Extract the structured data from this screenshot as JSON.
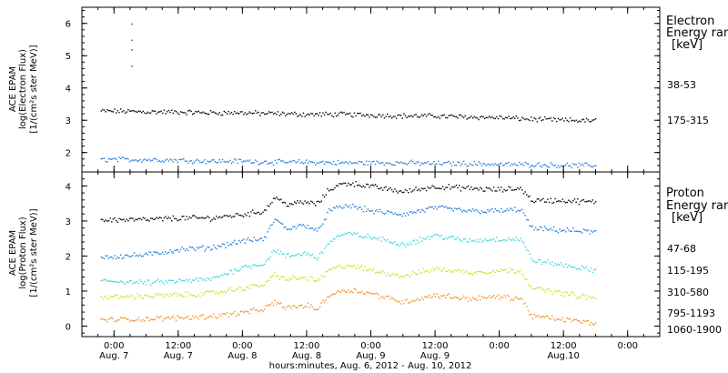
{
  "chart_data": [
    {
      "type": "scatter",
      "panel": "electron",
      "ylabel_lines": [
        "ACE EPAM",
        "log(Electron Flux)",
        "[1/(cm²s ster MeV)]"
      ],
      "ylim": [
        1.4,
        6.5
      ],
      "yticks": [
        2,
        3,
        4,
        5,
        6
      ],
      "yticklabels": [
        "2",
        "3",
        "4",
        "5",
        "6"
      ],
      "xlim_hours": [
        -6,
        102
      ],
      "legend": {
        "header_lines": [
          "Electron",
          "Energy ran",
          "[keV]"
        ],
        "placement": "right"
      },
      "series": [
        {
          "name": "38-53",
          "color": "#000000",
          "x": [
            0,
            6,
            12,
            18,
            24,
            30,
            36,
            42,
            48,
            54,
            60,
            66,
            72,
            78,
            84,
            90
          ],
          "y": [
            3.3,
            3.28,
            3.27,
            3.25,
            3.25,
            3.22,
            3.2,
            3.2,
            3.18,
            3.15,
            3.15,
            3.12,
            3.1,
            3.05,
            3.02,
            3.0
          ]
        },
        {
          "name": "175-315",
          "color": "#1a7ad6",
          "x": [
            0,
            6,
            12,
            18,
            24,
            30,
            36,
            42,
            48,
            54,
            60,
            66,
            72,
            78,
            84,
            90
          ],
          "y": [
            1.8,
            1.8,
            1.78,
            1.75,
            1.75,
            1.72,
            1.72,
            1.7,
            1.7,
            1.7,
            1.68,
            1.68,
            1.65,
            1.65,
            1.62,
            1.62
          ]
        }
      ],
      "annotations": [
        {
          "type": "spike",
          "x": 3.2,
          "y": [
            4.7,
            5.2,
            5.5,
            6.0
          ],
          "color": "#1a7ad6"
        }
      ]
    },
    {
      "type": "scatter",
      "panel": "proton",
      "ylabel_lines": [
        "ACE EPAM",
        "log(Proton Flux)",
        "[1/(cm²s ster MeV)]"
      ],
      "ylim": [
        -0.3,
        4.4
      ],
      "yticks": [
        0,
        1,
        2,
        3,
        4
      ],
      "yticklabels": [
        "0",
        "1",
        "2",
        "3",
        "4"
      ],
      "xlim_hours": [
        -6,
        102
      ],
      "xticks_hours": [
        0,
        12,
        24,
        36,
        48,
        60,
        72,
        84,
        96
      ],
      "xtick_time": [
        "0:00",
        "12:00",
        "0:00",
        "12:00",
        "0:00",
        "12:00",
        "0:00",
        "12:00",
        "0:00"
      ],
      "xtick_date": [
        "Aug. 7",
        "Aug. 7",
        "Aug. 8",
        "Aug. 8",
        "Aug. 9",
        "Aug. 9",
        "",
        "Aug.10",
        ""
      ],
      "xlabel": "hours:minutes, Aug.  6, 2012 - Aug. 10, 2012",
      "legend": {
        "header_lines": [
          "Proton",
          "Energy ran",
          "[keV]"
        ],
        "placement": "right"
      },
      "series": [
        {
          "name": "47-68",
          "color": "#000000",
          "x": [
            0,
            6,
            12,
            18,
            24,
            28,
            30,
            32,
            36,
            38,
            40,
            42,
            44,
            48,
            54,
            60,
            66,
            72,
            76,
            78,
            84,
            90
          ],
          "y": [
            3.05,
            3.05,
            3.1,
            3.1,
            3.2,
            3.3,
            3.7,
            3.5,
            3.55,
            3.5,
            3.9,
            4.05,
            4.1,
            4.0,
            3.85,
            4.0,
            3.95,
            3.9,
            3.95,
            3.6,
            3.6,
            3.55
          ]
        },
        {
          "name": "115-195",
          "color": "#1a7ad6",
          "x": [
            0,
            6,
            12,
            18,
            24,
            28,
            30,
            32,
            36,
            38,
            40,
            42,
            44,
            48,
            54,
            60,
            66,
            72,
            76,
            78,
            84,
            90
          ],
          "y": [
            2.0,
            2.05,
            2.2,
            2.25,
            2.45,
            2.5,
            3.1,
            2.8,
            2.9,
            2.7,
            3.3,
            3.4,
            3.45,
            3.3,
            3.2,
            3.4,
            3.3,
            3.3,
            3.35,
            2.8,
            2.75,
            2.7
          ]
        },
        {
          "name": "310-580",
          "color": "#33d6d6",
          "x": [
            0,
            6,
            12,
            18,
            24,
            28,
            30,
            32,
            36,
            38,
            40,
            42,
            44,
            48,
            54,
            60,
            66,
            72,
            76,
            78,
            84,
            90
          ],
          "y": [
            1.3,
            1.25,
            1.3,
            1.35,
            1.7,
            1.8,
            2.2,
            2.0,
            2.1,
            1.95,
            2.4,
            2.6,
            2.65,
            2.55,
            2.35,
            2.6,
            2.45,
            2.5,
            2.5,
            1.9,
            1.75,
            1.6
          ]
        },
        {
          "name": "795-1193",
          "color": "#c8e020",
          "x": [
            0,
            6,
            12,
            18,
            24,
            28,
            30,
            32,
            36,
            38,
            40,
            42,
            44,
            48,
            54,
            60,
            66,
            72,
            76,
            78,
            84,
            90
          ],
          "y": [
            0.85,
            0.88,
            0.9,
            0.95,
            1.1,
            1.2,
            1.5,
            1.35,
            1.4,
            1.3,
            1.6,
            1.7,
            1.75,
            1.6,
            1.45,
            1.65,
            1.55,
            1.6,
            1.6,
            1.1,
            0.95,
            0.8
          ]
        },
        {
          "name": "1060-1900",
          "color": "#ef8c1e",
          "x": [
            0,
            6,
            12,
            18,
            24,
            28,
            30,
            32,
            36,
            38,
            40,
            42,
            44,
            48,
            54,
            60,
            66,
            72,
            76,
            78,
            84,
            90
          ],
          "y": [
            0.2,
            0.22,
            0.25,
            0.3,
            0.4,
            0.5,
            0.7,
            0.55,
            0.6,
            0.5,
            0.9,
            1.0,
            1.05,
            0.95,
            0.7,
            0.9,
            0.8,
            0.85,
            0.8,
            0.3,
            0.2,
            0.1
          ]
        }
      ]
    }
  ]
}
